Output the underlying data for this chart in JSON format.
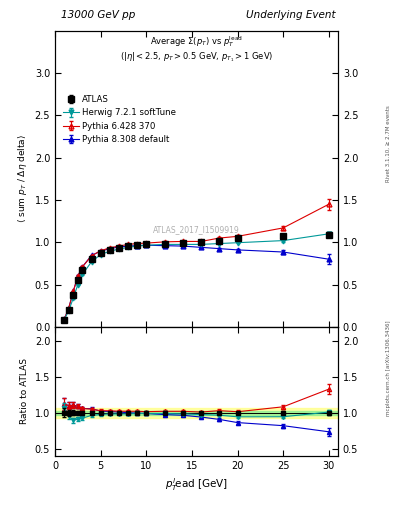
{
  "title_left": "13000 GeV pp",
  "title_right": "Underlying Event",
  "right_label_top": "Rivet 3.1.10, ≥ 2.7M events",
  "right_label_bot": "mcplots.cern.ch [arXiv:1306.3436]",
  "ref_label": "ATLAS_2017_I1509919",
  "main_ylabel": "⟨ sum p_T / Δη delta⟩",
  "ratio_ylabel": "Ratio to ATLAS",
  "xlabel": "p_T^lead [GeV]",
  "xlim": [
    0,
    31
  ],
  "main_ylim": [
    0,
    3.5
  ],
  "ratio_ylim": [
    0.4,
    2.2
  ],
  "atlas_x": [
    1.0,
    1.5,
    2.0,
    2.5,
    3.0,
    4.0,
    5.0,
    6.0,
    7.0,
    8.0,
    9.0,
    10.0,
    12.0,
    14.0,
    16.0,
    18.0,
    20.0,
    25.0,
    30.0
  ],
  "atlas_y": [
    0.08,
    0.2,
    0.38,
    0.55,
    0.67,
    0.8,
    0.875,
    0.91,
    0.935,
    0.955,
    0.965,
    0.975,
    0.985,
    0.99,
    1.0,
    1.02,
    1.055,
    1.08,
    1.09
  ],
  "atlas_yerr": [
    0.005,
    0.008,
    0.012,
    0.013,
    0.014,
    0.014,
    0.013,
    0.013,
    0.012,
    0.012,
    0.012,
    0.012,
    0.012,
    0.012,
    0.013,
    0.015,
    0.016,
    0.022,
    0.033
  ],
  "herwig_x": [
    1.0,
    1.5,
    2.0,
    2.5,
    3.0,
    4.0,
    5.0,
    6.0,
    7.0,
    8.0,
    9.0,
    10.0,
    12.0,
    14.0,
    16.0,
    18.0,
    20.0,
    25.0,
    30.0
  ],
  "herwig_y": [
    0.085,
    0.19,
    0.34,
    0.5,
    0.62,
    0.77,
    0.855,
    0.895,
    0.92,
    0.94,
    0.955,
    0.965,
    0.975,
    0.975,
    0.975,
    0.985,
    0.995,
    1.02,
    1.1
  ],
  "herwig_yerr": [
    0.003,
    0.004,
    0.006,
    0.007,
    0.007,
    0.007,
    0.007,
    0.007,
    0.007,
    0.007,
    0.007,
    0.007,
    0.007,
    0.007,
    0.007,
    0.007,
    0.009,
    0.013,
    0.018
  ],
  "pythia6_x": [
    1.0,
    1.5,
    2.0,
    2.5,
    3.0,
    4.0,
    5.0,
    6.0,
    7.0,
    8.0,
    9.0,
    10.0,
    12.0,
    14.0,
    16.0,
    18.0,
    20.0,
    25.0,
    30.0
  ],
  "pythia6_y": [
    0.09,
    0.22,
    0.42,
    0.6,
    0.71,
    0.84,
    0.9,
    0.935,
    0.955,
    0.975,
    0.985,
    0.99,
    1.005,
    1.01,
    1.01,
    1.05,
    1.07,
    1.17,
    1.45
  ],
  "pythia6_yerr": [
    0.003,
    0.005,
    0.007,
    0.008,
    0.008,
    0.008,
    0.008,
    0.008,
    0.008,
    0.008,
    0.008,
    0.008,
    0.008,
    0.008,
    0.01,
    0.012,
    0.015,
    0.022,
    0.065
  ],
  "pythia8_x": [
    1.0,
    1.5,
    2.0,
    2.5,
    3.0,
    4.0,
    5.0,
    6.0,
    7.0,
    8.0,
    9.0,
    10.0,
    12.0,
    14.0,
    16.0,
    18.0,
    20.0,
    25.0,
    30.0
  ],
  "pythia8_y": [
    0.09,
    0.22,
    0.42,
    0.6,
    0.71,
    0.845,
    0.895,
    0.925,
    0.945,
    0.955,
    0.96,
    0.965,
    0.96,
    0.955,
    0.94,
    0.925,
    0.91,
    0.885,
    0.8
  ],
  "pythia8_yerr": [
    0.003,
    0.005,
    0.007,
    0.008,
    0.008,
    0.008,
    0.008,
    0.008,
    0.008,
    0.008,
    0.008,
    0.008,
    0.008,
    0.008,
    0.01,
    0.012,
    0.015,
    0.022,
    0.058
  ],
  "atlas_color": "#000000",
  "herwig_color": "#009999",
  "pythia6_color": "#dd0000",
  "pythia8_color": "#0000cc",
  "band_green": "#90ee90",
  "band_yellow": "#ffff80",
  "main_yticks": [
    0,
    0.5,
    1.0,
    1.5,
    2.0,
    2.5,
    3.0
  ],
  "ratio_yticks": [
    0.5,
    1.0,
    1.5,
    2.0
  ],
  "xticks": [
    0,
    5,
    10,
    15,
    20,
    25,
    30
  ]
}
